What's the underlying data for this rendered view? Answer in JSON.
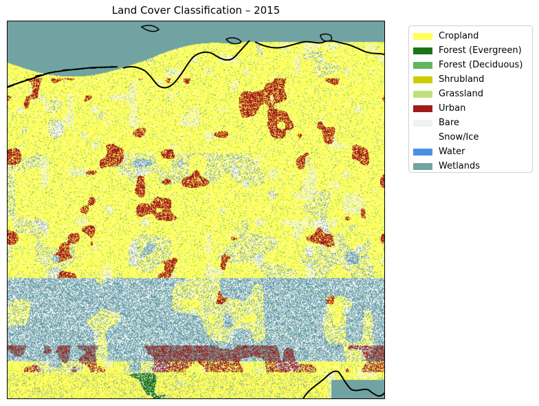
{
  "map": {
    "title": "Land Cover Classification – 2015"
  },
  "legend": {
    "items": [
      {
        "label": "Cropland",
        "color": "#ffff5a"
      },
      {
        "label": "Forest (Evergreen)",
        "color": "#1d7318"
      },
      {
        "label": "Forest (Deciduous)",
        "color": "#62b660"
      },
      {
        "label": "Shrubland",
        "color": "#cccc00"
      },
      {
        "label": "Grassland",
        "color": "#bfe07a"
      },
      {
        "label": "Urban",
        "color": "#a11b1b"
      },
      {
        "label": "Bare",
        "color": "#f2f2f2"
      },
      {
        "label": "Snow/Ice",
        "color": "#ffffff"
      },
      {
        "label": "Water",
        "color": "#4a90e2"
      },
      {
        "label": "Wetlands",
        "color": "#71a3a2"
      }
    ]
  }
}
